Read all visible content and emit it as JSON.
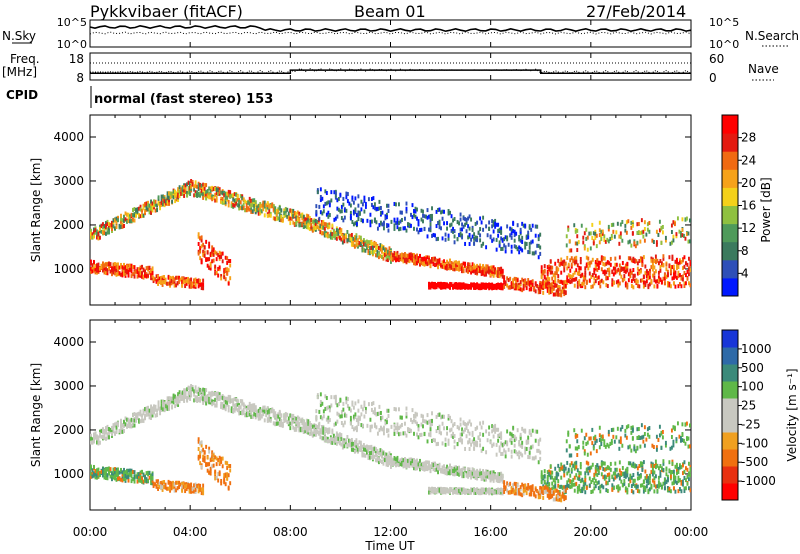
{
  "header": {
    "station": "Pykkvibaer (fitACF)",
    "beam": "Beam 01",
    "date": "27/Feb/2014"
  },
  "left_labels": {
    "nsky": "N.Sky",
    "freq": "Freq.",
    "freq_unit": "[MHz]",
    "cpid": "CPID"
  },
  "right_labels": {
    "nsearch": "N.Search",
    "nave": "Nave"
  },
  "cpid_text": "normal (fast stereo) 153",
  "colors": {
    "power_scale": [
      "#0018ff",
      "#2e4fb8",
      "#3b7a5e",
      "#4f9a5a",
      "#8fc040",
      "#f4d11a",
      "#f6a21a",
      "#f06a12",
      "#e41a10",
      "#ff0000"
    ],
    "velocity_scale": [
      "#1836d8",
      "#2e6aa8",
      "#3b8a7a",
      "#5fb848",
      "#c8c8c0",
      "#c8c8c0",
      "#f0a020",
      "#f07010",
      "#e83010",
      "#ff0000"
    ]
  },
  "chart_data": [
    {
      "type": "line",
      "name": "noise-panel",
      "y_left_ticks": [
        "10^5",
        "10^0"
      ],
      "y_right_ticks": [
        "10^5",
        "10^0"
      ],
      "series": [
        {
          "name": "N.Sky"
        },
        {
          "name": "N.Search"
        }
      ]
    },
    {
      "type": "line",
      "name": "freq-nave-panel",
      "y_left_ticks": [
        "18",
        "8"
      ],
      "y_right_ticks": [
        "60",
        "0"
      ],
      "series": [
        {
          "name": "Freq."
        },
        {
          "name": "Nave"
        }
      ]
    },
    {
      "type": "heatmap",
      "name": "power",
      "ylabel": "Slant Range [km]",
      "ylim": [
        180,
        4500
      ],
      "y_ticks": [
        "1000",
        "2000",
        "3000",
        "4000"
      ],
      "colorbar_label": "Power [dB]",
      "colorbar_ticks": [
        "4",
        "8",
        "12",
        "16",
        "20",
        "24",
        "28"
      ]
    },
    {
      "type": "heatmap",
      "name": "velocity",
      "ylabel": "Slant Range [km]",
      "ylim": [
        180,
        4500
      ],
      "y_ticks": [
        "1000",
        "2000",
        "3000",
        "4000"
      ],
      "colorbar_label": "Velocity [m s⁻¹]",
      "colorbar_ticks": [
        "1000",
        "500",
        "100",
        "25",
        "-25",
        "-100",
        "-500",
        "-1000"
      ]
    }
  ],
  "x_axis": {
    "label": "Time UT",
    "ticks": [
      "00:00",
      "04:00",
      "08:00",
      "12:00",
      "16:00",
      "20:00",
      "00:00"
    ]
  }
}
